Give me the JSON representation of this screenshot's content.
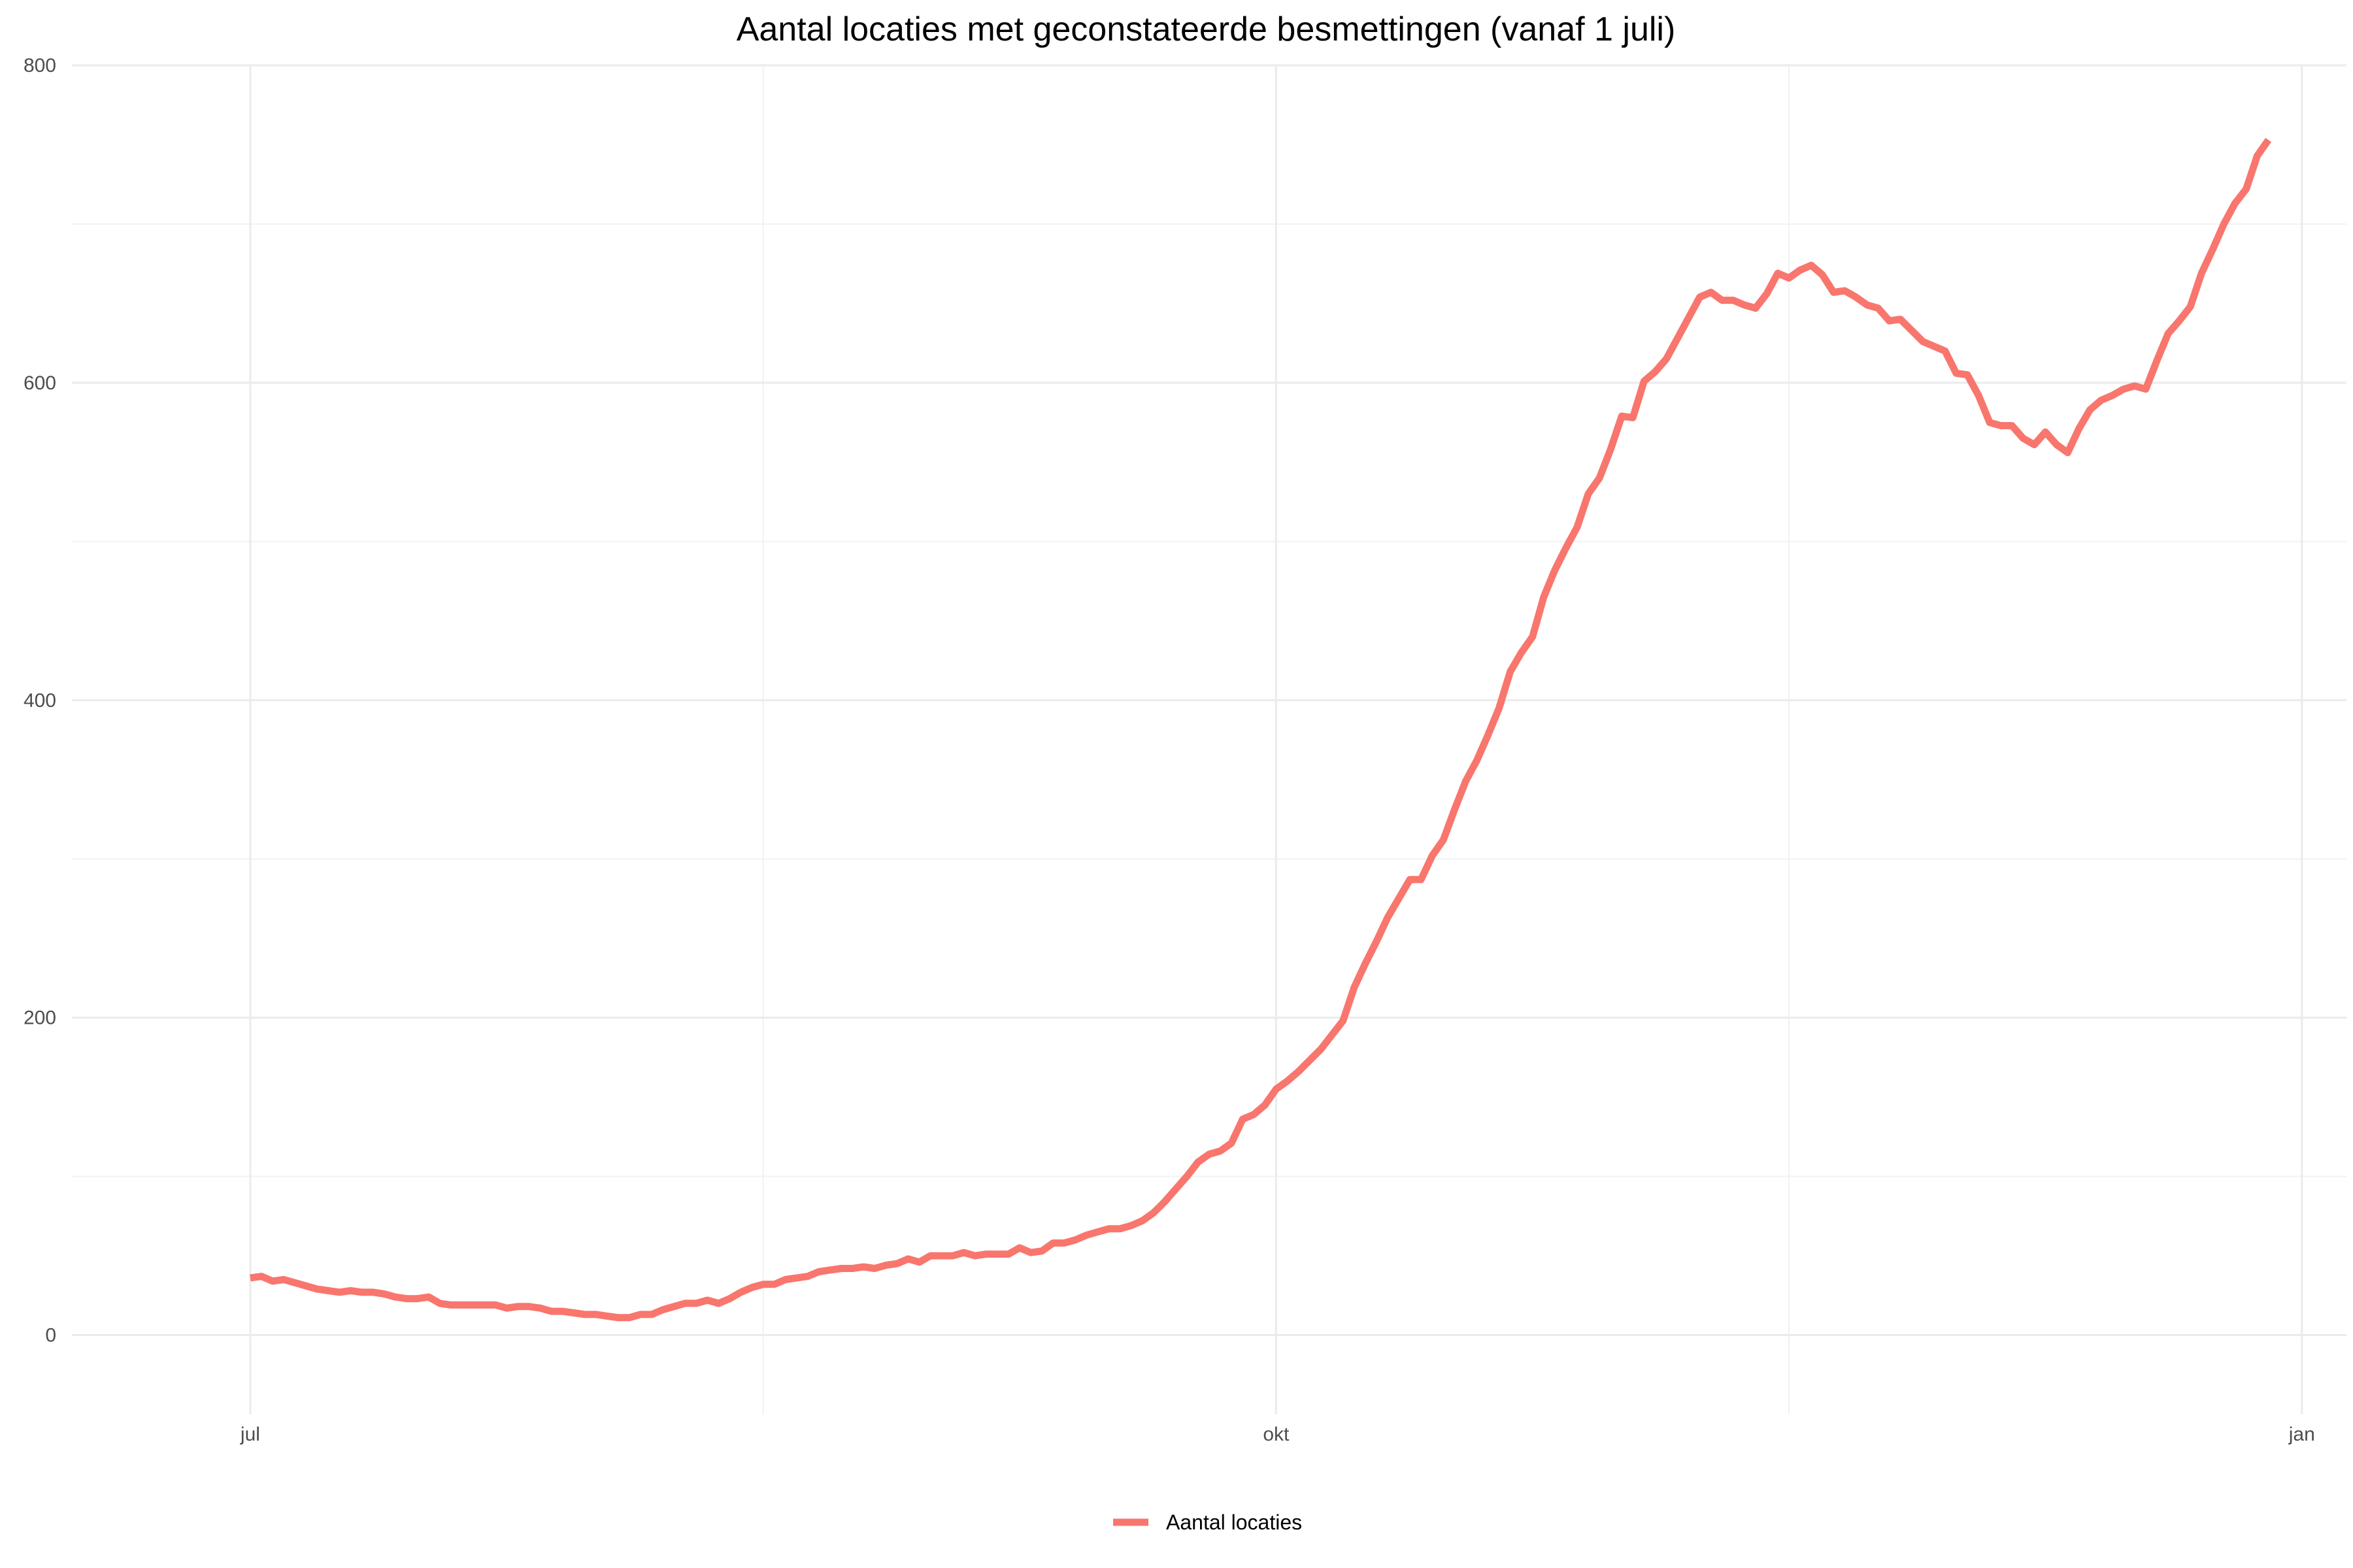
{
  "chart_data": {
    "type": "line",
    "title": "Aantal locaties met geconstateerde besmettingen (vanaf 1 juli)",
    "xlabel": "",
    "ylabel": "",
    "x_start": "2020-07-01",
    "x_ticks": [
      {
        "label": "jul",
        "date": "2020-07-01"
      },
      {
        "label": "okt",
        "date": "2020-10-01"
      },
      {
        "label": "jan",
        "date": "2021-01-01"
      }
    ],
    "x_range": [
      "2020-06-15",
      "2021-01-05"
    ],
    "y_ticks": [
      0,
      200,
      400,
      600,
      800
    ],
    "ylim": [
      -50,
      800
    ],
    "grid": true,
    "legend_position": "bottom",
    "series": [
      {
        "name": "Aantal locaties",
        "color": "#f8766d",
        "values": [
          36,
          37,
          34,
          35,
          33,
          31,
          29,
          28,
          27,
          28,
          27,
          27,
          26,
          24,
          23,
          23,
          24,
          20,
          19,
          19,
          19,
          19,
          19,
          17,
          18,
          18,
          17,
          15,
          15,
          14,
          13,
          13,
          12,
          11,
          11,
          13,
          13,
          16,
          18,
          20,
          20,
          22,
          20,
          23,
          27,
          30,
          32,
          32,
          35,
          36,
          37,
          40,
          41,
          42,
          42,
          43,
          42,
          44,
          45,
          48,
          46,
          50,
          50,
          50,
          52,
          50,
          51,
          51,
          51,
          55,
          52,
          53,
          58,
          58,
          60,
          63,
          65,
          67,
          67,
          69,
          72,
          77,
          84,
          92,
          100,
          109,
          114,
          116,
          121,
          136,
          139,
          145,
          155,
          160,
          166,
          173,
          180,
          189,
          198,
          219,
          234,
          248,
          263,
          275,
          287,
          287,
          302,
          312,
          331,
          349,
          362,
          378,
          395,
          418,
          430,
          440,
          465,
          482,
          496,
          509,
          530,
          540,
          558,
          579,
          578,
          601,
          607,
          615,
          628,
          641,
          654,
          657,
          652,
          652,
          649,
          647,
          656,
          669,
          666,
          671,
          674,
          668,
          657,
          658,
          654,
          649,
          647,
          639,
          640,
          633,
          626,
          623,
          620,
          606,
          605,
          592,
          575,
          573,
          573,
          565,
          561,
          569,
          561,
          556,
          571,
          583,
          589,
          592,
          596,
          598,
          596,
          614,
          631,
          639,
          648,
          669,
          684,
          700,
          713,
          722,
          743,
          753
        ]
      }
    ]
  }
}
